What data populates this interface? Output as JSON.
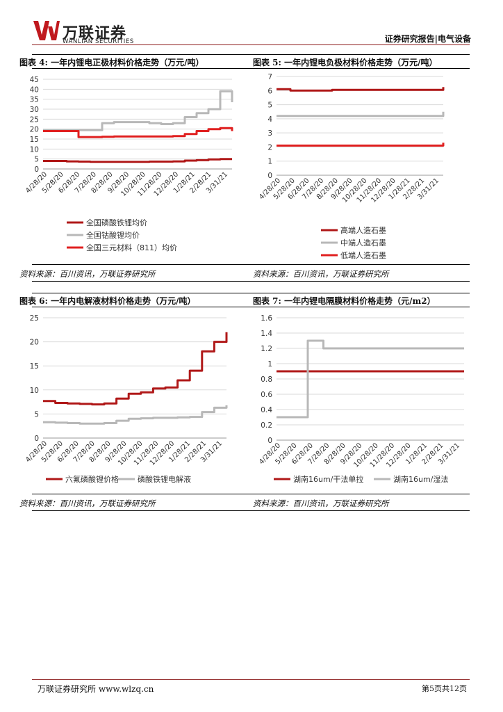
{
  "header": {
    "logo_cn": "万联证券",
    "logo_en": "WANLIAN SECURITIES",
    "right": "证券研究报告|电气设备"
  },
  "figures": [
    {
      "title": "图表 4:  一年内锂电正极材料价格走势（万元/吨）",
      "source": "资料来源：百川资讯，万联证券研究所",
      "chart_data": {
        "type": "line",
        "x_ticks": [
          "4/28/20",
          "5/28/20",
          "6/28/20",
          "7/28/20",
          "8/28/20",
          "9/28/20",
          "10/28/20",
          "11/28/20",
          "12/28/20",
          "1/28/21",
          "2/28/21",
          "3/31/21"
        ],
        "ylim": [
          0,
          45
        ],
        "y_ticks": [
          "0",
          "5",
          "10",
          "15",
          "20",
          "25",
          "30",
          "35",
          "40",
          "45"
        ],
        "grid": true,
        "legend_position": "bottom",
        "series": [
          {
            "name": "全国磷酸铁锂均价",
            "color": "#b01818",
            "values": [
              4,
              4,
              3.8,
              3.7,
              3.6,
              3.6,
              3.6,
              3.6,
              3.6,
              3.7,
              3.7,
              3.8,
              4.2,
              4.4,
              4.8,
              5,
              5
            ]
          },
          {
            "name": "全国钴酸锂均价",
            "color": "#b8b8b8",
            "values": [
              19.5,
              19.5,
              19.5,
              19.5,
              19.5,
              23,
              23.5,
              23.5,
              23.5,
              23,
              22.5,
              23,
              26,
              28,
              30,
              39,
              33.5
            ]
          },
          {
            "name": "全国三元材料（811）均价",
            "color": "#e02020",
            "values": [
              19,
              19,
              19,
              16,
              16,
              16.2,
              16.3,
              16.3,
              16.3,
              16.3,
              16.3,
              16.5,
              17.5,
              19,
              20,
              20.5,
              19
            ]
          }
        ]
      }
    },
    {
      "title": "图表 5:  一年内锂电负极材料价格走势（万元/吨）",
      "source": "资料来源：百川资讯，万联证券研究所",
      "chart_data": {
        "type": "line",
        "x_ticks": [
          "4/28/20",
          "5/28/20",
          "6/28/20",
          "7/28/20",
          "8/28/20",
          "9/28/20",
          "10/28/20",
          "11/28/20",
          "12/28/20",
          "1/28/21",
          "2/28/21",
          "3/31/21"
        ],
        "ylim": [
          0,
          7
        ],
        "y_ticks": [
          "0",
          "1",
          "2",
          "3",
          "4",
          "5",
          "6",
          "7"
        ],
        "grid": true,
        "legend_position": "bottom",
        "series": [
          {
            "name": "高端人造石墨",
            "color": "#b01818",
            "values": [
              6.1,
              6.0,
              6.0,
              6.0,
              6.05,
              6.05,
              6.05,
              6.05,
              6.05,
              6.05,
              6.05,
              6.05,
              6.25
            ]
          },
          {
            "name": "中端人造石墨",
            "color": "#b8b8b8",
            "values": [
              4.2,
              4.2,
              4.2,
              4.2,
              4.2,
              4.2,
              4.2,
              4.2,
              4.2,
              4.2,
              4.2,
              4.2,
              4.5
            ]
          },
          {
            "name": "低端人造石墨",
            "color": "#e02020",
            "values": [
              2.1,
              2.1,
              2.1,
              2.1,
              2.1,
              2.1,
              2.1,
              2.1,
              2.1,
              2.1,
              2.1,
              2.1,
              2.3
            ]
          }
        ]
      }
    },
    {
      "title": "图表 6:  一年内电解液材料价格走势（万元/吨）",
      "source": "资料来源：百川资讯，万联证券研究所",
      "chart_data": {
        "type": "line",
        "x_ticks": [
          "4/28/20",
          "5/28/20",
          "6/28/20",
          "7/28/20",
          "8/28/20",
          "9/28/20",
          "10/28/20",
          "11/28/20",
          "12/28/20",
          "1/28/21",
          "2/28/21",
          "3/31/21"
        ],
        "ylim": [
          0,
          25
        ],
        "y_ticks": [
          "0",
          "5",
          "10",
          "15",
          "20",
          "25"
        ],
        "grid": true,
        "legend_position": "bottom",
        "series": [
          {
            "name": "六氟磷酸锂价格",
            "color": "#b01818",
            "values": [
              7.7,
              7.3,
              7.2,
              7.1,
              7.0,
              7.2,
              8.2,
              9.2,
              9.5,
              10.3,
              10.5,
              12,
              14,
              18,
              20,
              22
            ]
          },
          {
            "name": "磷酸铁锂电解液",
            "color": "#b8b8b8",
            "values": [
              3.3,
              3.2,
              3.1,
              3.0,
              3.0,
              3.1,
              3.6,
              4.0,
              4.1,
              4.2,
              4.2,
              4.3,
              4.4,
              5.4,
              6.3,
              6.8
            ]
          }
        ]
      }
    },
    {
      "title": "图表 7:  一年内锂电隔膜材料价格走势（元/m2）",
      "source": "资料来源：百川资讯，万联证券研究所",
      "chart_data": {
        "type": "line",
        "x_ticks": [
          "4/28/20",
          "5/28/20",
          "6/28/20",
          "7/28/20",
          "8/28/20",
          "9/28/20",
          "10/28/20",
          "11/28/20",
          "12/28/20",
          "1/28/21",
          "2/28/21",
          "3/31/21"
        ],
        "ylim": [
          0,
          1.6
        ],
        "y_ticks": [
          "0",
          "0.2",
          "0.4",
          "0.6",
          "0.8",
          "1",
          "1.2",
          "1.4",
          "1.6"
        ],
        "grid": true,
        "legend_position": "bottom",
        "series": [
          {
            "name": "湖南16um/干法单拉",
            "color": "#b01818",
            "values": [
              0.9,
              0.9,
              0.9,
              0.9,
              0.9,
              0.9,
              0.9,
              0.9,
              0.9,
              0.9,
              0.9,
              0.9,
              0.9
            ]
          },
          {
            "name": "湖南16um/湿法",
            "color": "#b8b8b8",
            "values": [
              0.3,
              0.3,
              1.3,
              1.2,
              1.2,
              1.2,
              1.2,
              1.2,
              1.2,
              1.2,
              1.2,
              1.2,
              1.2
            ]
          }
        ]
      }
    }
  ],
  "footer": {
    "left": "万联证券研究所 www.wlzq.cn",
    "right": "第5页共12页"
  }
}
